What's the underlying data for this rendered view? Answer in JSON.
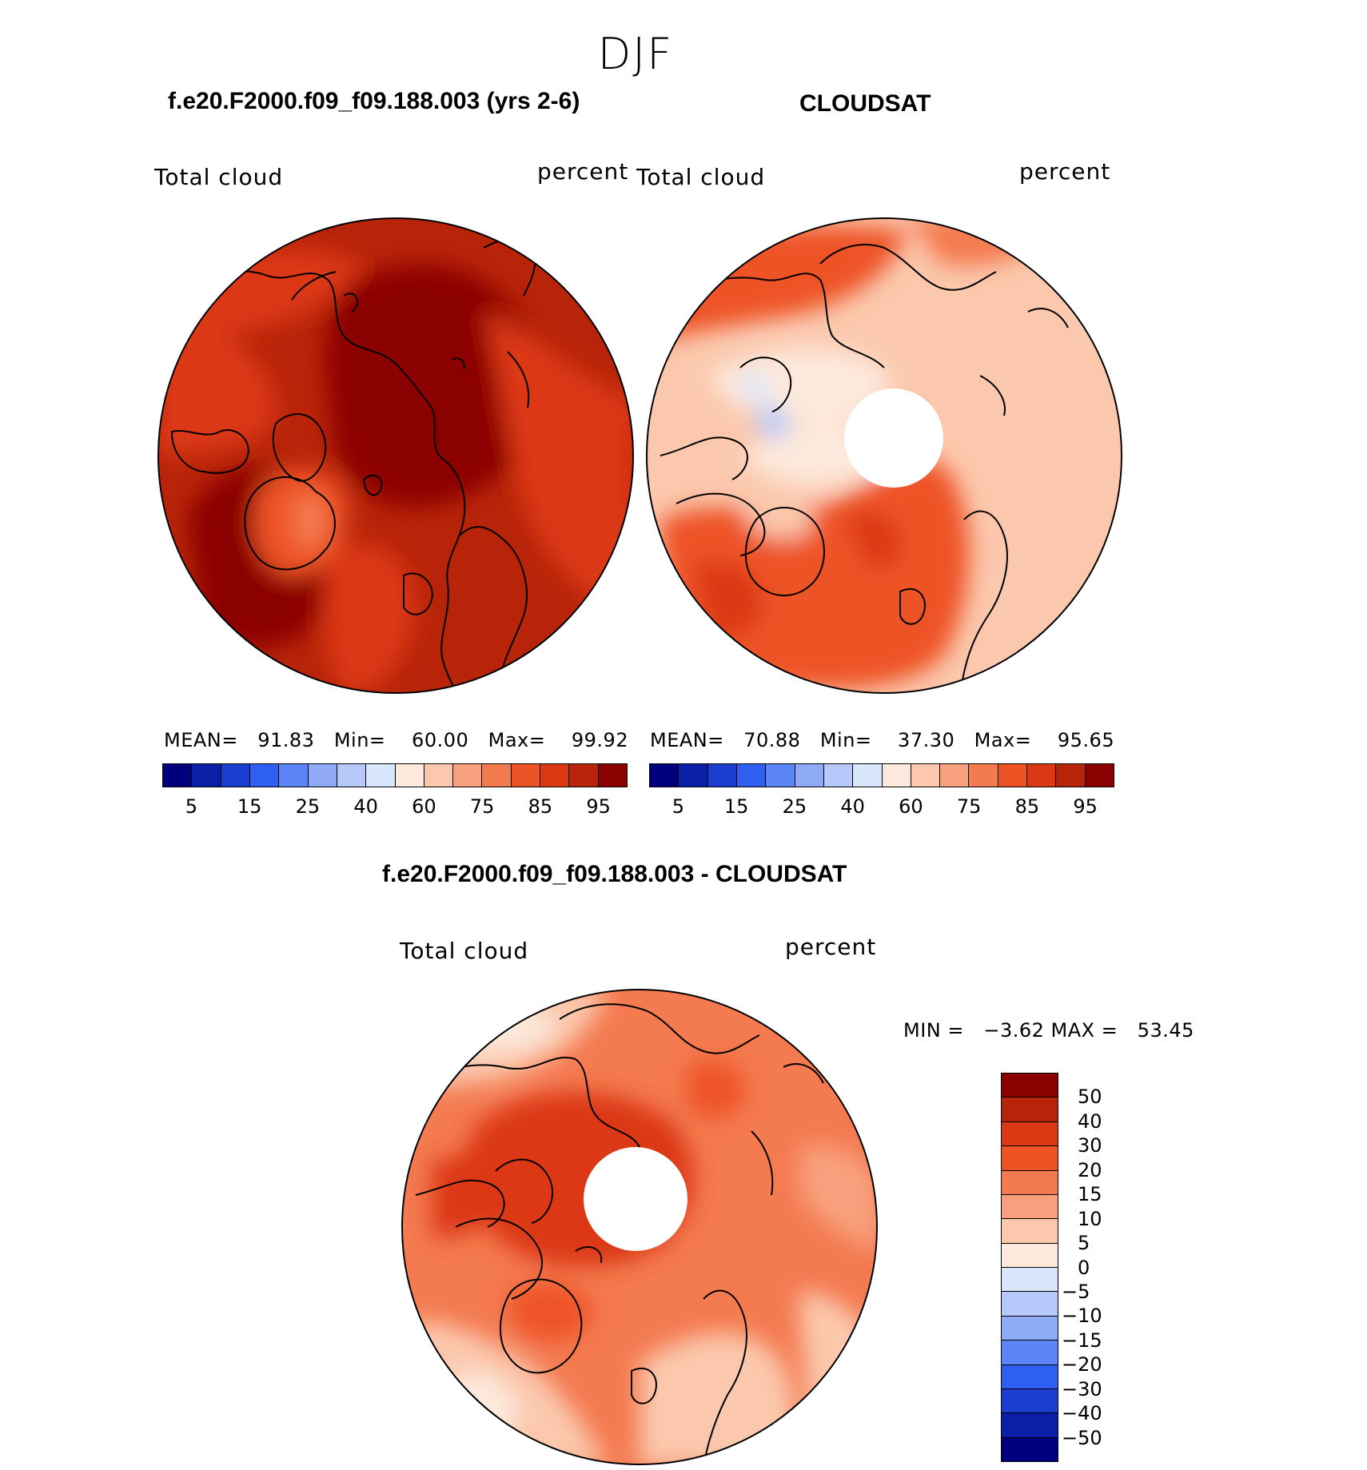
{
  "season": "DJF",
  "panels": [
    {
      "title": "f.e20.F2000.f09_f09.188.003 (yrs 2-6)",
      "left_label": "Total cloud",
      "right_label": "percent",
      "stats": "MEAN=   91.83   Min=    60.00   Max=    99.92"
    },
    {
      "title": "CLOUDSAT",
      "left_label": "Total cloud",
      "right_label": "percent",
      "stats": "MEAN=   70.88   Min=    37.30   Max=    95.65"
    }
  ],
  "colorbar": {
    "colors": [
      "#00007f",
      "#0a1ea8",
      "#1c3ed0",
      "#2f5ff0",
      "#5b84f6",
      "#8faaf7",
      "#b7c9fa",
      "#d8e7fb",
      "#fde9dc",
      "#fbc8ad",
      "#f8a07d",
      "#f47a50",
      "#ee5326",
      "#dc3814",
      "#b82409",
      "#8b0000"
    ],
    "ticks": [
      "5",
      "15",
      "25",
      "40",
      "60",
      "75",
      "85",
      "95"
    ]
  },
  "diff": {
    "title": "f.e20.F2000.f09_f09.188.003 - CLOUDSAT",
    "left_label": "Total cloud",
    "right_label": "percent",
    "minmax": "MIN =   −3.62 MAX =   53.45",
    "colors": [
      "#8b0000",
      "#b82409",
      "#dc3814",
      "#ee5326",
      "#f47a50",
      "#f8a07d",
      "#fbc8ad",
      "#fde9dc",
      "#d8e7fb",
      "#b7c9fa",
      "#8faaf7",
      "#5b84f6",
      "#2f5ff0",
      "#1c3ed0",
      "#0a1ea8",
      "#00007f"
    ],
    "ticks": [
      "50",
      "40",
      "30",
      "20",
      "15",
      "10",
      "5",
      "0",
      "−5",
      "−10",
      "−15",
      "−20",
      "−30",
      "−40",
      "−50"
    ]
  }
}
